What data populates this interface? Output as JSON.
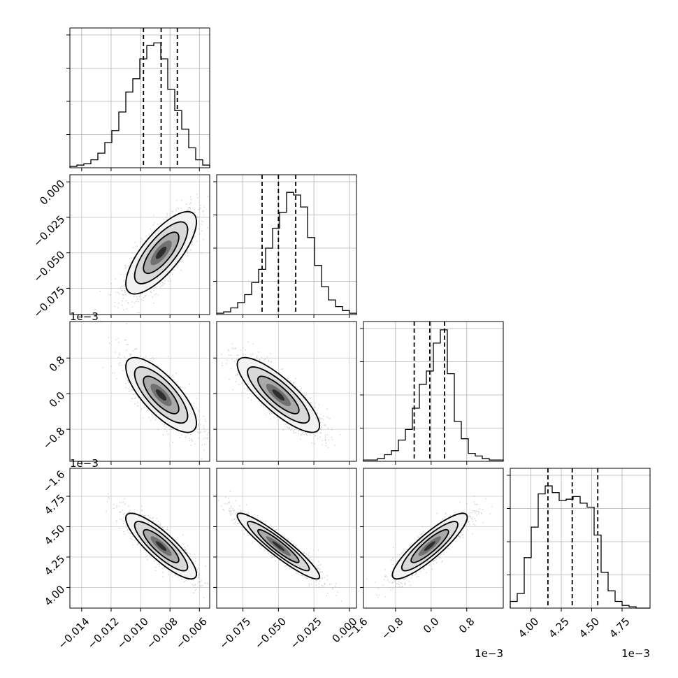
{
  "chart_data": {
    "type": "corner",
    "grid": true,
    "quantile_lines": "dashed",
    "parameters": [
      {
        "range": [
          -0.0148,
          -0.0053
        ],
        "ticks": [
          -0.014,
          -0.012,
          -0.01,
          -0.008,
          -0.006
        ],
        "tick_labels": [
          "−0.014",
          "−0.012",
          "−0.010",
          "−0.008",
          "−0.006"
        ],
        "offset_label": "",
        "quantiles": [
          -0.0098,
          -0.0086,
          -0.0075
        ],
        "hist": [
          0.01,
          0.02,
          0.03,
          0.06,
          0.11,
          0.19,
          0.28,
          0.42,
          0.57,
          0.67,
          0.82,
          0.92,
          0.94,
          0.82,
          0.59,
          0.43,
          0.29,
          0.15,
          0.06,
          0.02
        ]
      },
      {
        "range": [
          -0.0935,
          0.005
        ],
        "ticks": [
          -0.075,
          -0.05,
          -0.025,
          0.0
        ],
        "tick_labels": [
          "−0.075",
          "−0.050",
          "−0.025",
          "0.000"
        ],
        "offset_label": "",
        "quantiles": [
          -0.0615,
          -0.05,
          -0.0378
        ],
        "hist": [
          0.01,
          0.02,
          0.05,
          0.09,
          0.15,
          0.24,
          0.34,
          0.5,
          0.65,
          0.77,
          0.92,
          0.9,
          0.81,
          0.58,
          0.37,
          0.21,
          0.11,
          0.06,
          0.03,
          0.01
        ]
      },
      {
        "range": [
          -1.52,
          1.62
        ],
        "ticks": [
          -1.6,
          -0.8,
          0.0,
          0.8
        ],
        "tick_labels": [
          "−1.6",
          "−0.8",
          "0.0",
          "0.8"
        ],
        "offset_label": "1e−3",
        "quantiles": [
          -0.38,
          -0.03,
          0.3
        ],
        "hist": [
          0.01,
          0.01,
          0.02,
          0.05,
          0.08,
          0.16,
          0.24,
          0.4,
          0.58,
          0.68,
          0.89,
          0.99,
          0.66,
          0.3,
          0.17,
          0.06,
          0.04,
          0.02,
          0.01,
          0.01
        ]
      },
      {
        "range": [
          3.83,
          4.98
        ],
        "ticks": [
          4.0,
          4.25,
          4.5,
          4.75
        ],
        "tick_labels": [
          "4.00",
          "4.25",
          "4.50",
          "4.75"
        ],
        "offset_label": "1e−3",
        "quantiles": [
          4.14,
          4.34,
          4.55
        ],
        "hist": [
          0.05,
          0.11,
          0.38,
          0.61,
          0.86,
          0.92,
          0.87,
          0.81,
          0.82,
          0.84,
          0.79,
          0.76,
          0.55,
          0.27,
          0.13,
          0.05,
          0.02,
          0.01,
          0.0,
          0.0
        ]
      }
    ],
    "pairs": [
      {
        "row": 1,
        "col": 0,
        "mean": [
          -0.0086,
          -0.05
        ],
        "sd": [
          0.0012,
          0.0145
        ],
        "rho": 0.75
      },
      {
        "row": 2,
        "col": 0,
        "mean": [
          -0.0086,
          -0.03
        ],
        "sd": [
          0.0012,
          0.42
        ],
        "rho": -0.75
      },
      {
        "row": 2,
        "col": 1,
        "mean": [
          -0.05,
          -0.03
        ],
        "sd": [
          0.0145,
          0.42
        ],
        "rho": -0.82
      },
      {
        "row": 3,
        "col": 0,
        "mean": [
          -0.0086,
          4.34
        ],
        "sd": [
          0.0012,
          0.135
        ],
        "rho": -0.85
      },
      {
        "row": 3,
        "col": 1,
        "mean": [
          -0.05,
          4.34
        ],
        "sd": [
          0.0145,
          0.135
        ],
        "rho": -0.93
      },
      {
        "row": 3,
        "col": 2,
        "mean": [
          -0.03,
          4.34
        ],
        "sd": [
          0.42,
          0.135
        ],
        "rho": 0.88
      }
    ]
  }
}
